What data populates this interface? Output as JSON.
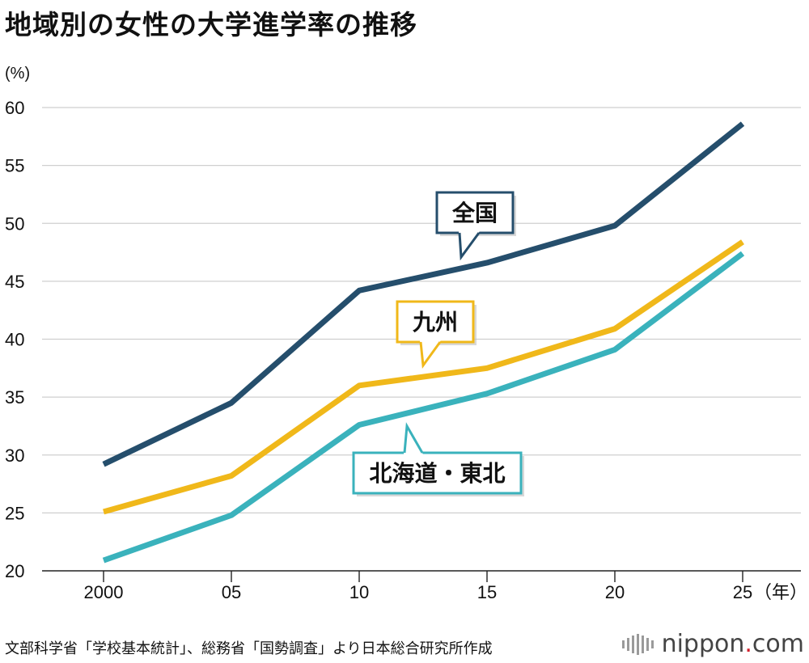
{
  "title": "地域別の女性の大学進学率の推移",
  "source": "文部科学省「学校基本統計」、総務省「国勢調査」より日本総合研究所作成",
  "brand": {
    "name": "nippon",
    "dot": ".",
    "suffix": "com"
  },
  "chart_data": {
    "type": "line",
    "ylabel": "(%)",
    "x_unit": "（年）",
    "categories": [
      "2000",
      "05",
      "10",
      "15",
      "20",
      "25"
    ],
    "x": [
      2000,
      2005,
      2010,
      2015,
      2020,
      2025
    ],
    "ylim": [
      20,
      60
    ],
    "yticks": [
      "20",
      "25",
      "30",
      "35",
      "40",
      "45",
      "50",
      "55",
      "60"
    ],
    "grid": true,
    "series": [
      {
        "name": "全国",
        "color": "#254e6c",
        "values": [
          29.2,
          34.5,
          44.2,
          46.6,
          49.8,
          58.6
        ]
      },
      {
        "name": "九州",
        "color": "#f0b81a",
        "values": [
          25.1,
          28.2,
          36.0,
          37.5,
          40.9,
          48.4
        ]
      },
      {
        "name": "北海道・東北",
        "color": "#3ab2bc",
        "values": [
          20.9,
          24.8,
          32.6,
          35.3,
          39.1,
          47.4
        ]
      }
    ]
  }
}
